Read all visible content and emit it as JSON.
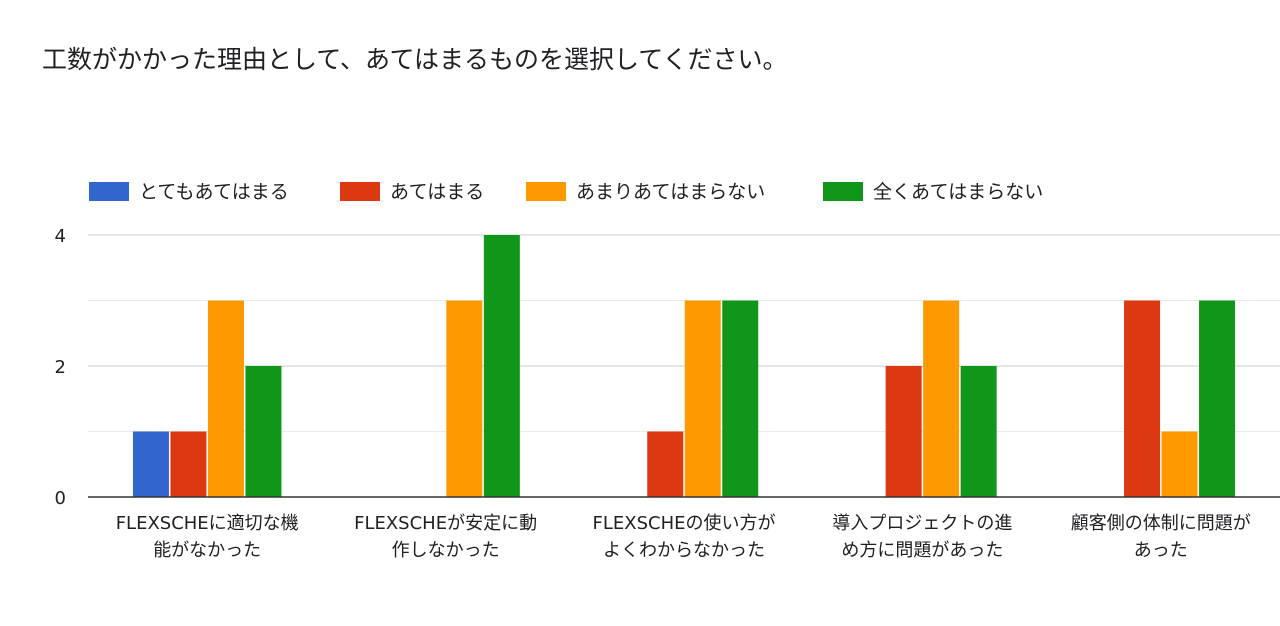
{
  "question": {
    "title": "工数がかかった理由として、あてはまるものを選択してください。"
  },
  "chart_data": {
    "type": "bar",
    "categories": [
      [
        "FLEXSCHEに適切な機",
        "能がなかった"
      ],
      [
        "FLEXSCHEが安定に動",
        "作しなかった"
      ],
      [
        "FLEXSCHEの使い方が",
        "よくわからなかった"
      ],
      [
        "導入プロジェクトの進",
        "め方に問題があった"
      ],
      [
        "顧客側の体制に問題が",
        "あった"
      ]
    ],
    "series": [
      {
        "name": "とてもあてはまる",
        "color": "#3366cc",
        "values": [
          1,
          0,
          0,
          0,
          0
        ]
      },
      {
        "name": "あてはまる",
        "color": "#dc3912",
        "values": [
          1,
          0,
          1,
          2,
          3
        ]
      },
      {
        "name": "あまりあてはまらない",
        "color": "#ff9900",
        "values": [
          3,
          3,
          3,
          3,
          1
        ]
      },
      {
        "name": "全くあてはまらない",
        "color": "#109618",
        "values": [
          2,
          4,
          3,
          2,
          3
        ]
      }
    ],
    "ylim": [
      0,
      4
    ],
    "yticks": [
      "0",
      "2",
      "4"
    ],
    "grid": true,
    "legend_position": "top"
  }
}
